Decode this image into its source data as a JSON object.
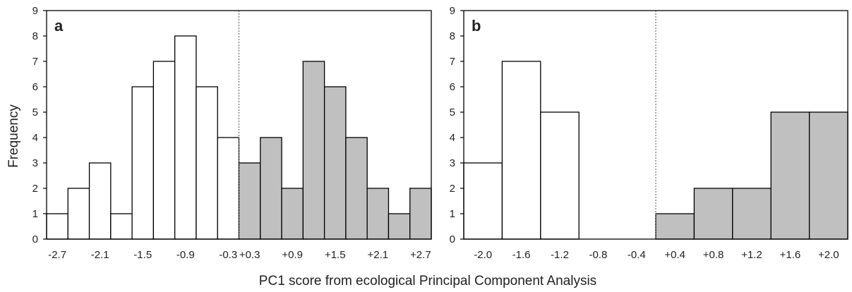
{
  "figure": {
    "ylabel": "Frequency",
    "xlabel": "PC1 score from ecological Principal Component Analysis"
  },
  "colors": {
    "negative_fill": "#ffffff",
    "positive_fill": "#c0c0c0",
    "bar_stroke": "#000000",
    "axis": "#000000"
  },
  "chart_data": [
    {
      "type": "bar",
      "panel_label": "a",
      "ylim": [
        0,
        9
      ],
      "yticks": [
        0,
        1,
        2,
        3,
        4,
        5,
        6,
        7,
        8,
        9
      ],
      "bin_centers": [
        -2.7,
        -2.4,
        -2.1,
        -1.8,
        -1.5,
        -1.2,
        -0.9,
        -0.6,
        -0.3,
        0.3,
        0.6,
        0.9,
        1.2,
        1.5,
        1.8,
        2.1,
        2.4,
        2.7
      ],
      "values": [
        1,
        2,
        3,
        1,
        6,
        7,
        8,
        6,
        4,
        3,
        4,
        2,
        7,
        6,
        4,
        2,
        1,
        2
      ],
      "groups": [
        "negative",
        "negative",
        "negative",
        "negative",
        "negative",
        "negative",
        "negative",
        "negative",
        "negative",
        "positive",
        "positive",
        "positive",
        "positive",
        "positive",
        "positive",
        "positive",
        "positive",
        "positive"
      ],
      "tick_labels": [
        {
          "bin": 0,
          "label": "-2.7"
        },
        {
          "bin": 2,
          "label": "-2.1"
        },
        {
          "bin": 4,
          "label": "-1.5"
        },
        {
          "bin": 6,
          "label": "-0.9"
        },
        {
          "bin": 8,
          "label": "-0.3"
        },
        {
          "bin": 9,
          "label": "+0.3"
        },
        {
          "bin": 11,
          "label": "+0.9"
        },
        {
          "bin": 13,
          "label": "+1.5"
        },
        {
          "bin": 15,
          "label": "+2.1"
        },
        {
          "bin": 17,
          "label": "+2.7"
        }
      ],
      "divider_after_bin": 8
    },
    {
      "type": "bar",
      "panel_label": "b",
      "ylim": [
        0,
        9
      ],
      "yticks": [
        0,
        1,
        2,
        3,
        4,
        5,
        6,
        7,
        8,
        9
      ],
      "bin_centers": [
        -2.0,
        -1.6,
        -1.2,
        -0.8,
        -0.4,
        0.4,
        0.8,
        1.2,
        1.6,
        2.0
      ],
      "values": [
        3,
        7,
        5,
        0,
        0,
        1,
        2,
        2,
        5,
        5
      ],
      "groups": [
        "negative",
        "negative",
        "negative",
        "negative",
        "negative",
        "positive",
        "positive",
        "positive",
        "positive",
        "positive"
      ],
      "tick_labels": [
        {
          "bin": 0,
          "label": "-2.0"
        },
        {
          "bin": 1,
          "label": "-1.6"
        },
        {
          "bin": 2,
          "label": "-1.2"
        },
        {
          "bin": 3,
          "label": "-0.8"
        },
        {
          "bin": 4,
          "label": "-0.4"
        },
        {
          "bin": 5,
          "label": "+0.4"
        },
        {
          "bin": 6,
          "label": "+0.8"
        },
        {
          "bin": 7,
          "label": "+1.2"
        },
        {
          "bin": 8,
          "label": "+1.6"
        },
        {
          "bin": 9,
          "label": "+2.0"
        }
      ],
      "divider_after_bin": 4
    }
  ]
}
